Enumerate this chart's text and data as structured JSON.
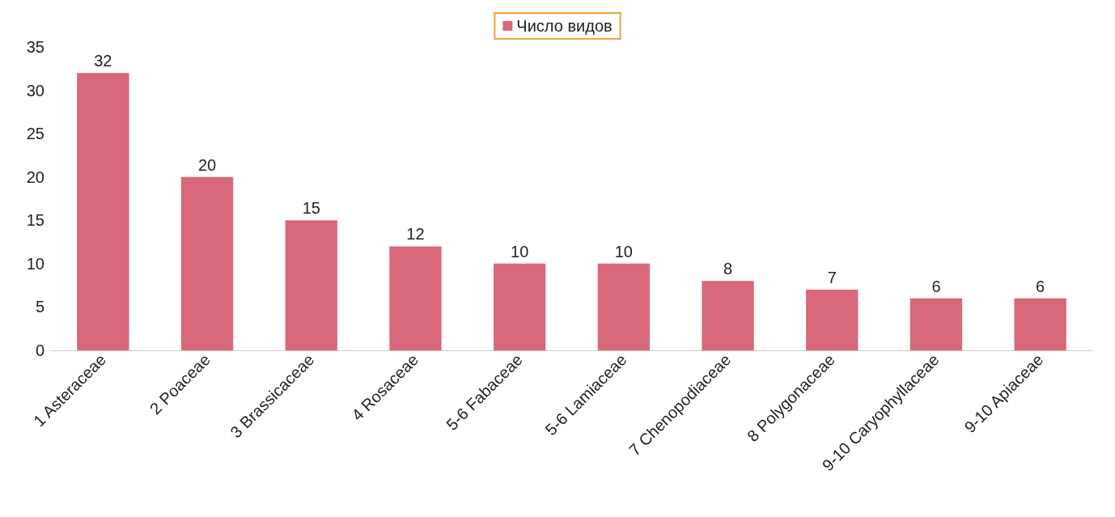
{
  "chart_data": {
    "type": "bar",
    "categories": [
      "1 Asteraceae",
      "2 Poaceae",
      "3 Brassicaceae",
      "4 Rosaceae",
      "5-6 Fabaceae",
      "5-6 Lamiaceae",
      "7 Chenopodiaceae",
      "8 Polygonaceae",
      "9-10 Caryophyllaceae",
      "9-10 Apiaceae"
    ],
    "series": [
      {
        "name": "Число видов",
        "color": "#d9687a",
        "values": [
          32,
          20,
          15,
          12,
          10,
          10,
          8,
          7,
          6,
          6
        ]
      }
    ],
    "ylim": [
      0,
      35
    ],
    "yticks": [
      0,
      5,
      10,
      15,
      20,
      25,
      30,
      35
    ],
    "grid": false,
    "legend": "top",
    "data_labels": true
  }
}
